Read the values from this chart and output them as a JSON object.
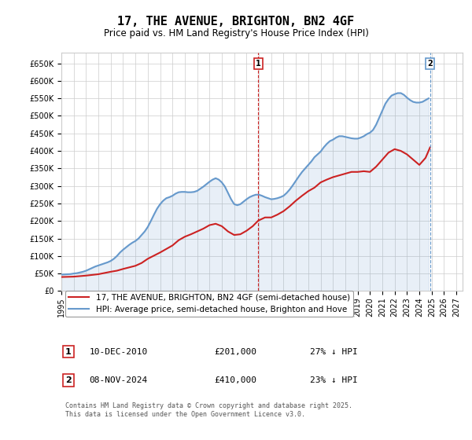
{
  "title": "17, THE AVENUE, BRIGHTON, BN2 4GF",
  "subtitle": "Price paid vs. HM Land Registry's House Price Index (HPI)",
  "ylim": [
    0,
    680000
  ],
  "yticks": [
    0,
    50000,
    100000,
    150000,
    200000,
    250000,
    300000,
    350000,
    400000,
    450000,
    500000,
    550000,
    600000,
    650000
  ],
  "xlim_start": 1995.0,
  "xlim_end": 2027.5,
  "background_color": "#ffffff",
  "grid_color": "#cccccc",
  "hpi_color": "#6699cc",
  "price_color": "#cc2222",
  "marker1_date": 2010.95,
  "marker2_date": 2024.87,
  "marker1_label": "1",
  "marker2_label": "2",
  "marker1_text": "10-DEC-2010     £201,000     27% ↓ HPI",
  "marker2_text": "08-NOV-2024     £410,000     23% ↓ HPI",
  "legend_label1": "17, THE AVENUE, BRIGHTON, BN2 4GF (semi-detached house)",
  "legend_label2": "HPI: Average price, semi-detached house, Brighton and Hove",
  "footer": "Contains HM Land Registry data © Crown copyright and database right 2025.\nThis data is licensed under the Open Government Licence v3.0.",
  "hpi_data_x": [
    1995.0,
    1995.25,
    1995.5,
    1995.75,
    1996.0,
    1996.25,
    1996.5,
    1996.75,
    1997.0,
    1997.25,
    1997.5,
    1997.75,
    1998.0,
    1998.25,
    1998.5,
    1998.75,
    1999.0,
    1999.25,
    1999.5,
    1999.75,
    2000.0,
    2000.25,
    2000.5,
    2000.75,
    2001.0,
    2001.25,
    2001.5,
    2001.75,
    2002.0,
    2002.25,
    2002.5,
    2002.75,
    2003.0,
    2003.25,
    2003.5,
    2003.75,
    2004.0,
    2004.25,
    2004.5,
    2004.75,
    2005.0,
    2005.25,
    2005.5,
    2005.75,
    2006.0,
    2006.25,
    2006.5,
    2006.75,
    2007.0,
    2007.25,
    2007.5,
    2007.75,
    2008.0,
    2008.25,
    2008.5,
    2008.75,
    2009.0,
    2009.25,
    2009.5,
    2009.75,
    2010.0,
    2010.25,
    2010.5,
    2010.75,
    2011.0,
    2011.25,
    2011.5,
    2011.75,
    2012.0,
    2012.25,
    2012.5,
    2012.75,
    2013.0,
    2013.25,
    2013.5,
    2013.75,
    2014.0,
    2014.25,
    2014.5,
    2014.75,
    2015.0,
    2015.25,
    2015.5,
    2015.75,
    2016.0,
    2016.25,
    2016.5,
    2016.75,
    2017.0,
    2017.25,
    2017.5,
    2017.75,
    2018.0,
    2018.25,
    2018.5,
    2018.75,
    2019.0,
    2019.25,
    2019.5,
    2019.75,
    2020.0,
    2020.25,
    2020.5,
    2020.75,
    2021.0,
    2021.25,
    2021.5,
    2021.75,
    2022.0,
    2022.25,
    2022.5,
    2022.75,
    2023.0,
    2023.25,
    2023.5,
    2023.75,
    2024.0,
    2024.25,
    2024.5,
    2024.75
  ],
  "hpi_data_y": [
    47000,
    47500,
    48000,
    48500,
    50000,
    51000,
    53000,
    55000,
    58000,
    62000,
    66000,
    70000,
    73000,
    76000,
    79000,
    82000,
    86000,
    92000,
    100000,
    110000,
    118000,
    125000,
    132000,
    138000,
    143000,
    150000,
    160000,
    170000,
    183000,
    200000,
    218000,
    235000,
    248000,
    258000,
    265000,
    268000,
    272000,
    278000,
    282000,
    283000,
    283000,
    282000,
    282000,
    283000,
    286000,
    292000,
    298000,
    305000,
    312000,
    318000,
    322000,
    318000,
    310000,
    298000,
    280000,
    262000,
    248000,
    245000,
    248000,
    255000,
    262000,
    268000,
    272000,
    275000,
    275000,
    272000,
    268000,
    265000,
    262000,
    263000,
    265000,
    268000,
    272000,
    280000,
    290000,
    302000,
    315000,
    328000,
    340000,
    350000,
    360000,
    370000,
    382000,
    390000,
    398000,
    410000,
    420000,
    428000,
    432000,
    438000,
    442000,
    442000,
    440000,
    438000,
    436000,
    435000,
    435000,
    438000,
    442000,
    448000,
    452000,
    460000,
    475000,
    495000,
    515000,
    535000,
    548000,
    558000,
    562000,
    565000,
    565000,
    560000,
    552000,
    545000,
    540000,
    538000,
    538000,
    540000,
    545000,
    550000
  ],
  "price_data_x": [
    1995.0,
    1995.5,
    1996.0,
    1997.0,
    1998.0,
    1999.0,
    1999.5,
    2000.0,
    2001.0,
    2001.5,
    2002.0,
    2003.0,
    2004.0,
    2004.5,
    2005.0,
    2005.5,
    2006.0,
    2006.5,
    2007.0,
    2007.5,
    2008.0,
    2008.5,
    2009.0,
    2009.5,
    2010.0,
    2010.5,
    2010.95,
    2011.5,
    2012.0,
    2012.5,
    2013.0,
    2013.5,
    2014.0,
    2014.5,
    2015.0,
    2015.5,
    2016.0,
    2016.5,
    2017.0,
    2017.5,
    2018.0,
    2018.5,
    2019.0,
    2019.5,
    2020.0,
    2020.5,
    2021.0,
    2021.5,
    2022.0,
    2022.5,
    2023.0,
    2023.5,
    2024.0,
    2024.5,
    2024.87
  ],
  "price_data_y": [
    40000,
    40500,
    41000,
    44000,
    48000,
    55000,
    58000,
    63000,
    72000,
    80000,
    92000,
    110000,
    130000,
    145000,
    155000,
    162000,
    170000,
    178000,
    188000,
    192000,
    185000,
    170000,
    160000,
    162000,
    172000,
    185000,
    201000,
    210000,
    210000,
    218000,
    228000,
    242000,
    258000,
    272000,
    285000,
    295000,
    310000,
    318000,
    325000,
    330000,
    335000,
    340000,
    340000,
    342000,
    340000,
    355000,
    375000,
    395000,
    405000,
    400000,
    390000,
    375000,
    360000,
    380000,
    410000
  ]
}
